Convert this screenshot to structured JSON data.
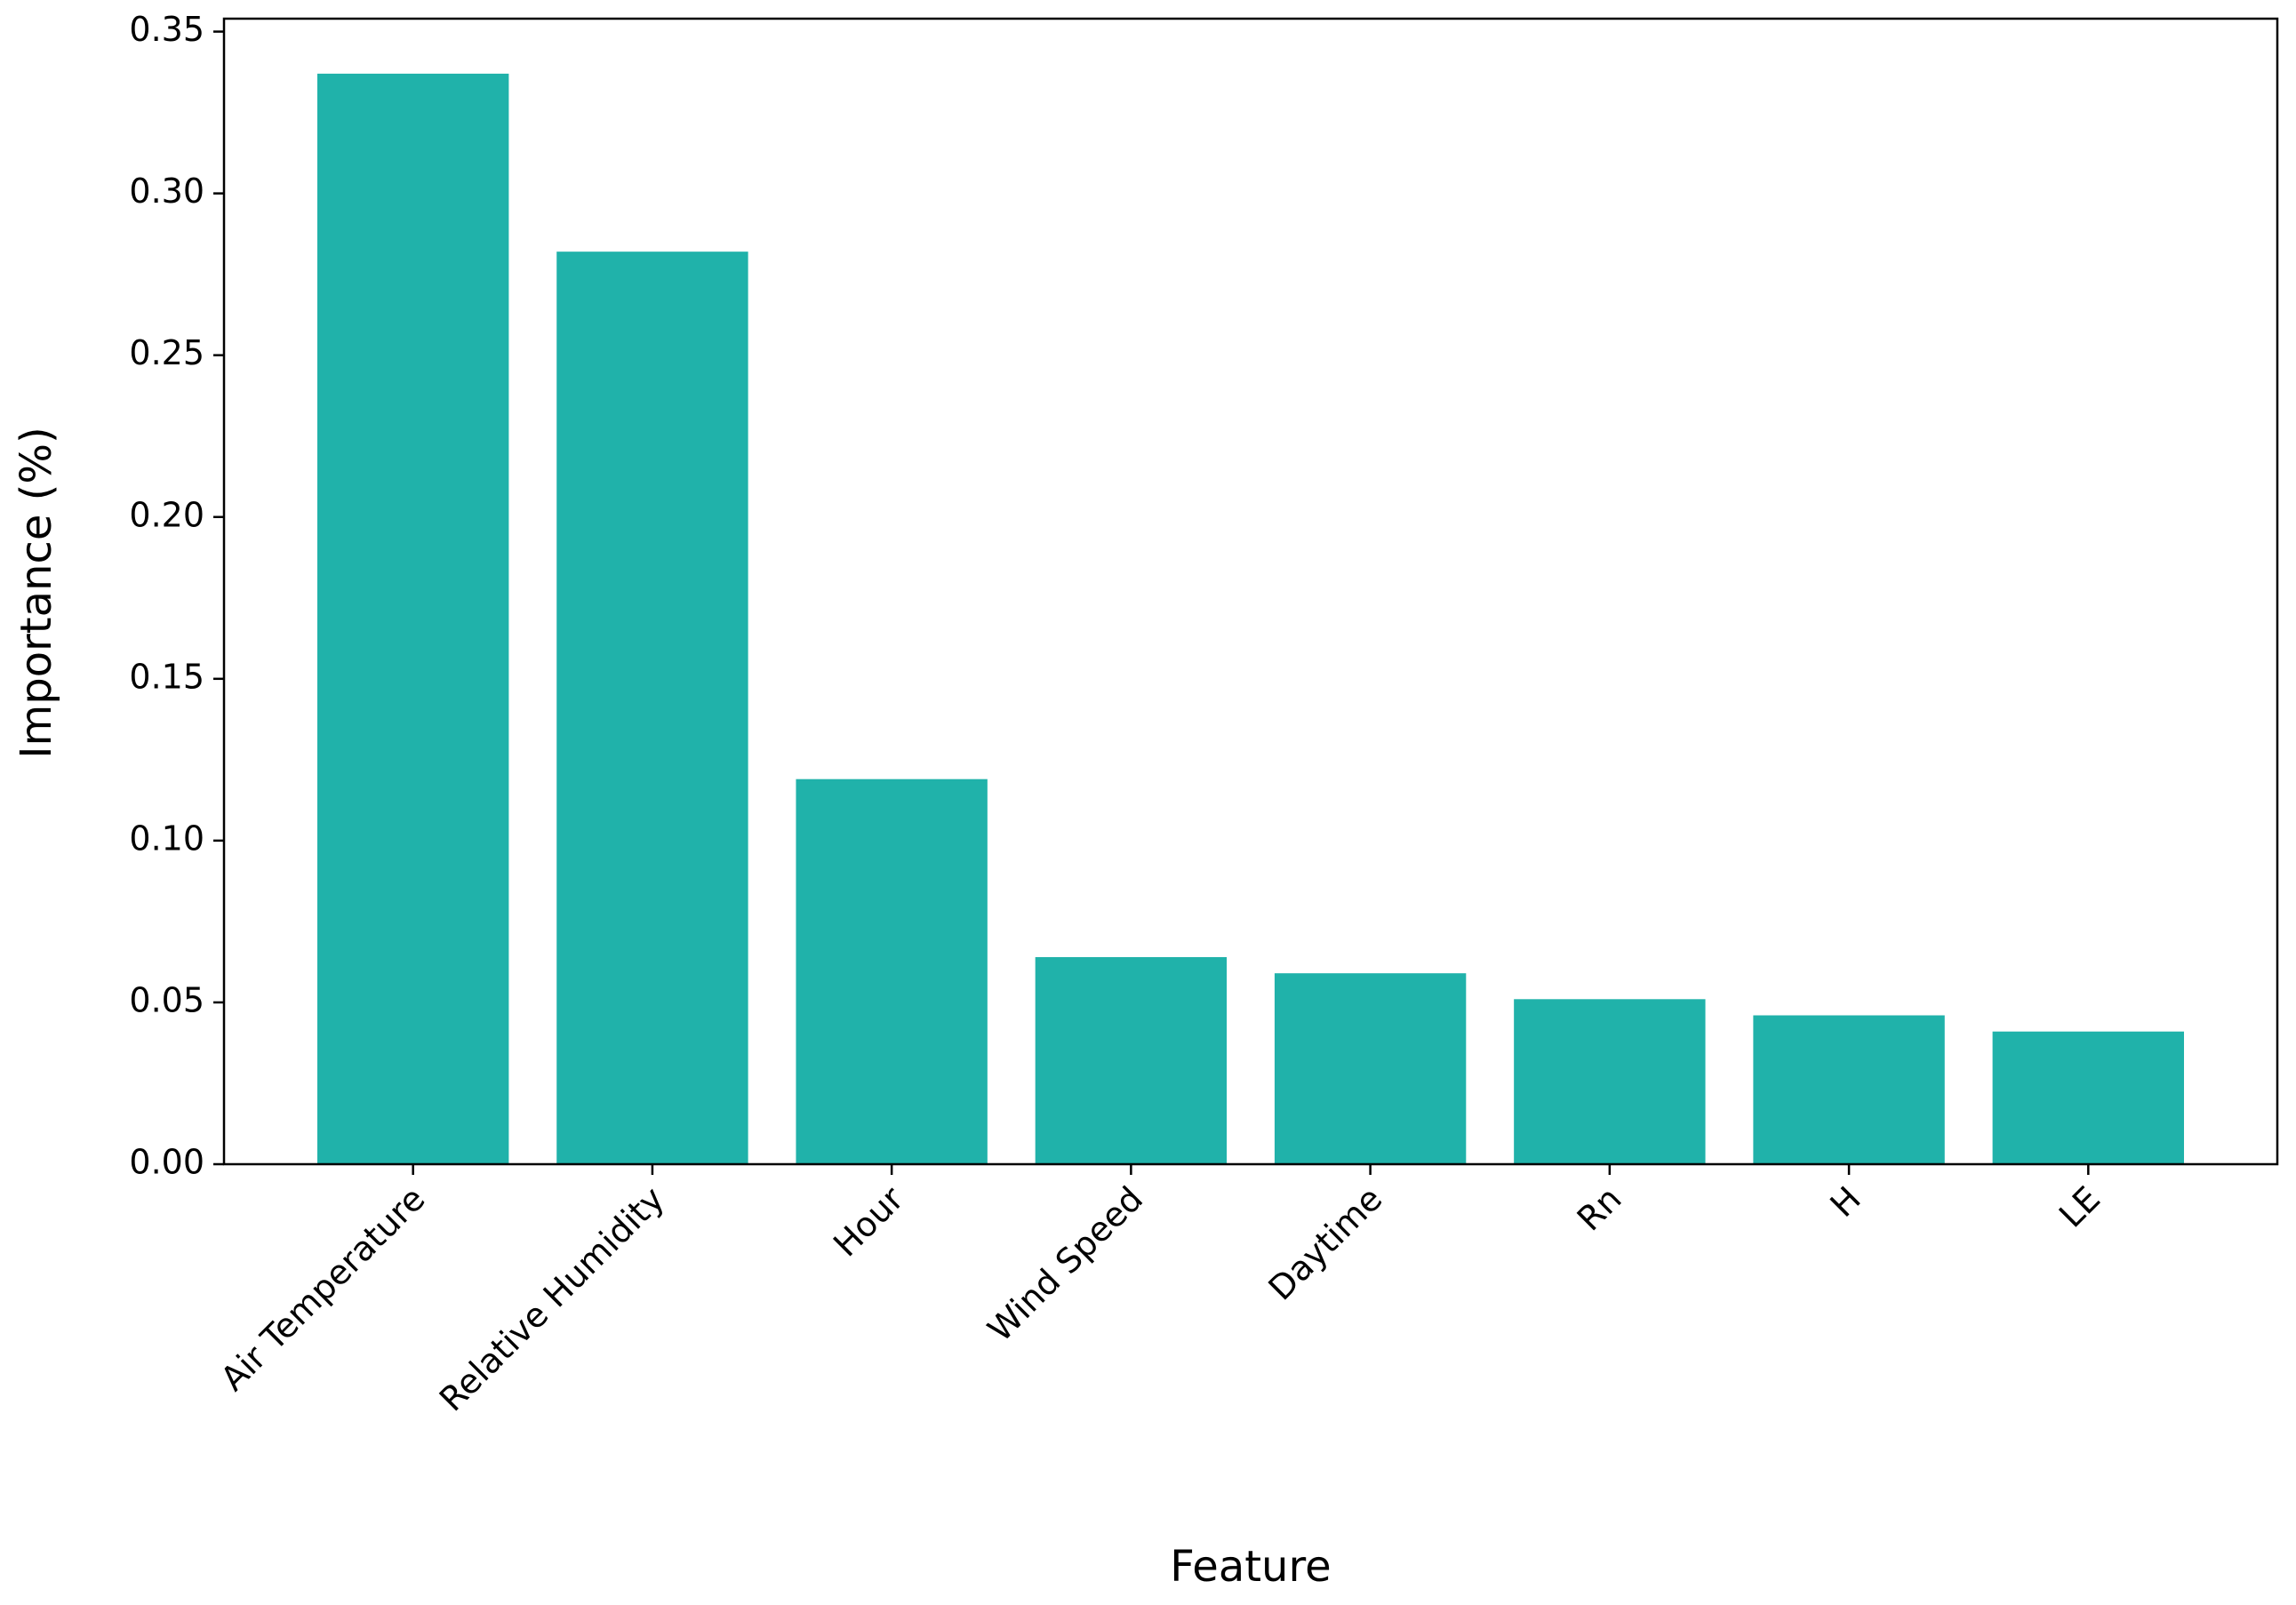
{
  "chart_data": {
    "type": "bar",
    "x_label": "Feature",
    "y_label": "Importance (%)",
    "categories": [
      "Air Temperature",
      "Relative Humidity",
      "Hour",
      "Wind Speed",
      "Daytime",
      "Rn",
      "H",
      "LE"
    ],
    "values": [
      0.337,
      0.282,
      0.119,
      0.064,
      0.059,
      0.051,
      0.046,
      0.041
    ],
    "color": "#20b2aa",
    "ylim": [
      0,
      0.354
    ],
    "yticks": [
      {
        "value": 0,
        "label": "0.00"
      },
      0.05,
      {
        "value": 0.1,
        "label": "0.10"
      },
      0.15,
      {
        "value": 0.2,
        "label": "0.20"
      },
      0.25,
      {
        "value": 0.3,
        "label": "0.30"
      },
      0.35
    ],
    "grid": false
  }
}
